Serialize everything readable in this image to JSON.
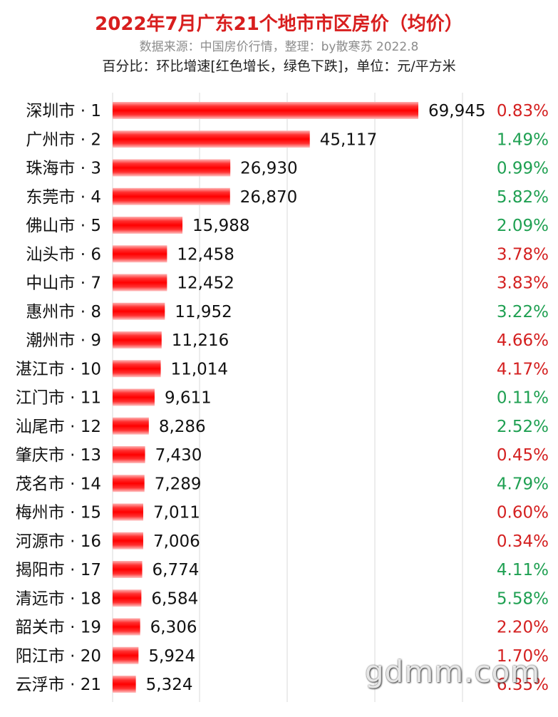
{
  "header": {
    "title": "2022年7月广东21个地市市区房价（均价）",
    "subtitle": "数据来源：中国房价行情，整理：by散寒苏 2022.8",
    "note": "百分比：环比增速[红色增长，绿色下跌]，单位：元/平方米"
  },
  "watermark": "gdmm.com",
  "colors": {
    "bar": "#ff1a1a",
    "up": "#d42020",
    "down": "#1fa052",
    "grid": "#d9d9d9",
    "title": "#d81e1e"
  },
  "chart_data": {
    "type": "bar",
    "orientation": "horizontal",
    "grid": true,
    "categories": [
      "深圳市 · 1",
      "广州市 · 2",
      "珠海市 · 3",
      "东莞市 · 4",
      "佛山市 · 5",
      "汕头市 · 6",
      "中山市 · 7",
      "惠州市 · 8",
      "潮州市 · 9",
      "湛江市 · 10",
      "江门市 · 11",
      "汕尾市 · 12",
      "肇庆市 · 13",
      "茂名市 · 14",
      "梅州市 · 15",
      "河源市 · 16",
      "揭阳市 · 17",
      "清远市 · 18",
      "韶关市 · 19",
      "阳江市 · 20",
      "云浮市 · 21"
    ],
    "values": [
      69945,
      45117,
      26930,
      26870,
      15988,
      12458,
      12452,
      11952,
      11216,
      11014,
      9611,
      8286,
      7430,
      7289,
      7011,
      7006,
      6774,
      6584,
      6306,
      5924,
      5324
    ],
    "value_labels": [
      "69,945",
      "45,117",
      "26,930",
      "26,870",
      "15,988",
      "12,458",
      "12,452",
      "11,952",
      "11,216",
      "11,014",
      "9,611",
      "8,286",
      "7,430",
      "7,289",
      "7,011",
      "7,006",
      "6,774",
      "6,584",
      "6,306",
      "5,924",
      "5,324"
    ],
    "changes": [
      "0.83%",
      "1.49%",
      "0.99%",
      "5.82%",
      "2.09%",
      "3.78%",
      "3.83%",
      "3.22%",
      "4.66%",
      "4.17%",
      "0.11%",
      "2.52%",
      "0.45%",
      "4.79%",
      "0.60%",
      "0.34%",
      "4.11%",
      "5.58%",
      "2.20%",
      "1.70%",
      "6.35%"
    ],
    "change_direction": [
      "up",
      "down",
      "down",
      "down",
      "down",
      "up",
      "up",
      "down",
      "up",
      "up",
      "down",
      "down",
      "up",
      "down",
      "up",
      "up",
      "down",
      "down",
      "up",
      "up",
      "up"
    ],
    "xlim": [
      0,
      70000
    ]
  }
}
